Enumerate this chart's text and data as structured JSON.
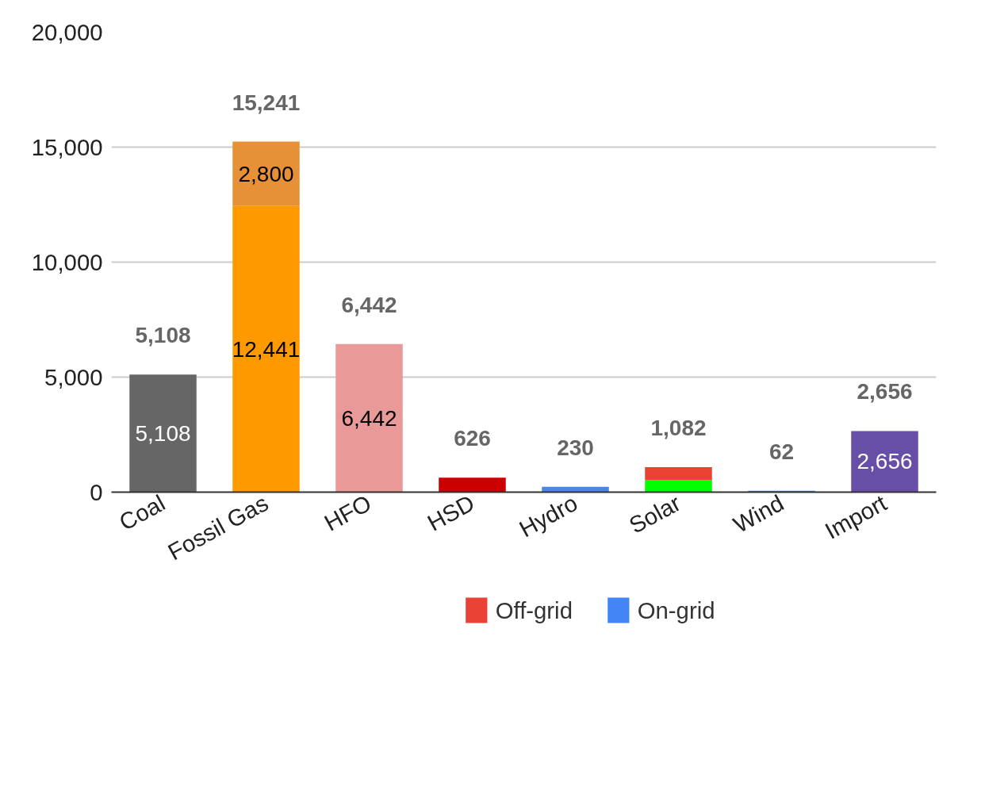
{
  "chart_data": {
    "type": "bar",
    "stacked": true,
    "categories": [
      "Coal",
      "Fossil Gas",
      "HFO",
      "HSD",
      "Hydro",
      "Solar",
      "Wind",
      "Import"
    ],
    "series": [
      {
        "name": "On-grid",
        "color": "#4285f4",
        "colors": [
          "#666666",
          "#ff9900",
          "#ea9999",
          "#cc0000",
          "#4a86e8",
          "#00ff00",
          "#4a86e8",
          "#674ea7"
        ],
        "values": [
          5108,
          12441,
          6442,
          626,
          230,
          520,
          62,
          2656
        ],
        "value_labels": [
          "5,108",
          "12,441",
          "6,442",
          null,
          null,
          null,
          null,
          "2,656"
        ]
      },
      {
        "name": "Off-grid",
        "color": "#ea4335",
        "colors": [
          null,
          "#e69138",
          null,
          null,
          null,
          "#ea4335",
          null,
          null
        ],
        "values": [
          null,
          2800,
          null,
          null,
          null,
          562,
          null,
          null
        ],
        "value_labels": [
          null,
          "2,800",
          null,
          null,
          null,
          null,
          null,
          null
        ]
      }
    ],
    "totals": [
      "5,108",
      "15,241",
      "6,442",
      "626",
      "230",
      "1,082",
      "62",
      "2,656"
    ],
    "ylim": [
      0,
      20000
    ],
    "yticks": [
      {
        "value": 0,
        "label": "0"
      },
      {
        "value": 5000,
        "label": "5,000"
      },
      {
        "value": 10000,
        "label": "10,000"
      },
      {
        "value": 15000,
        "label": "15,000"
      },
      {
        "value": 20000,
        "label": "20,000"
      }
    ],
    "grid": "y",
    "legend": "bottom"
  }
}
